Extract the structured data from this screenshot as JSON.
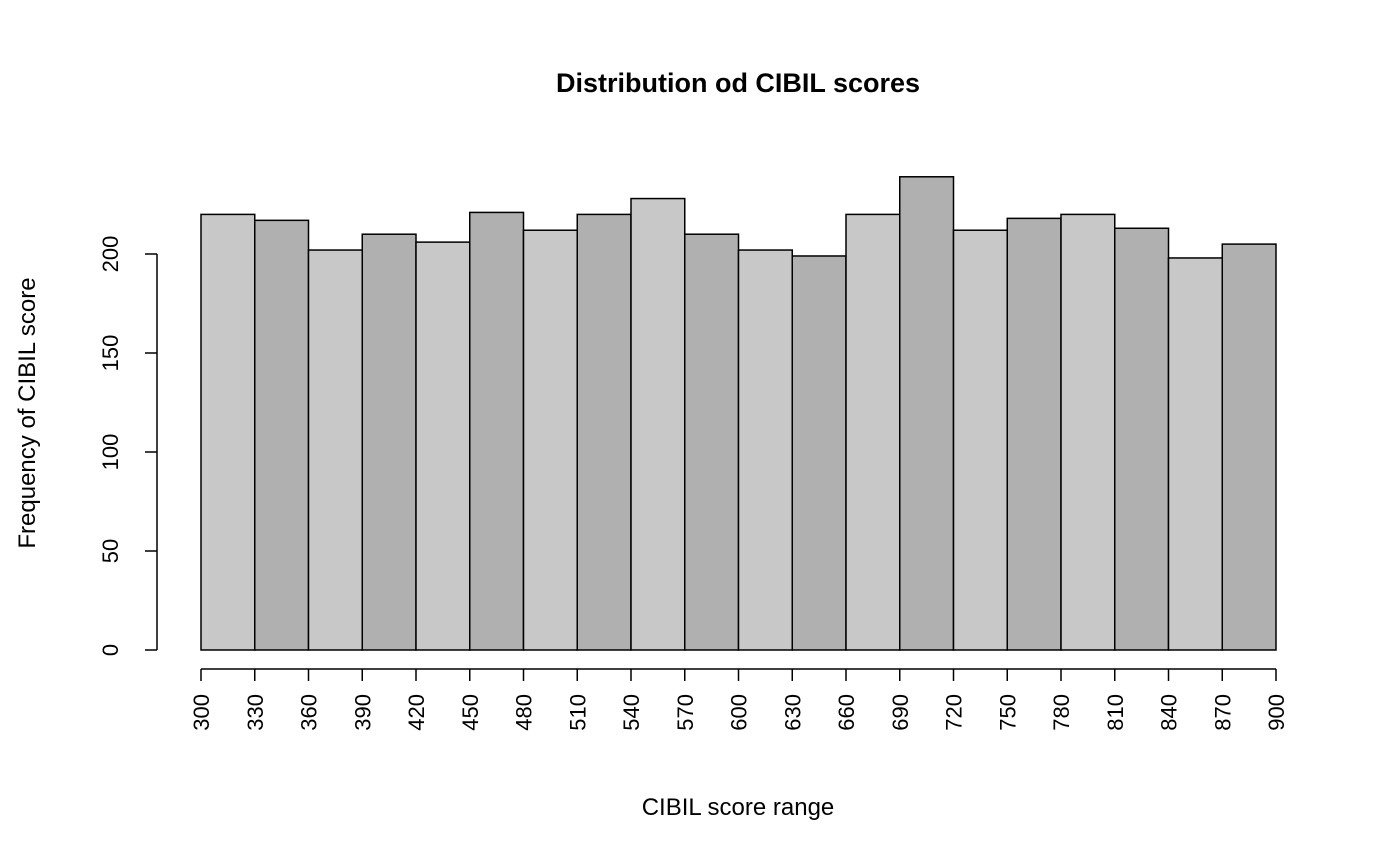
{
  "chart_data": {
    "type": "histogram",
    "title": "Distribution od CIBIL scores",
    "x_label": "CIBIL score range",
    "y_label": "Frequency of CIBIL score",
    "bins": [
      300,
      330,
      360,
      390,
      420,
      450,
      480,
      510,
      540,
      570,
      600,
      630,
      660,
      690,
      720,
      750,
      780,
      810,
      840,
      870,
      900
    ],
    "values": [
      220,
      217,
      202,
      210,
      206,
      221,
      212,
      220,
      228,
      210,
      202,
      199,
      220,
      239,
      212,
      218,
      220,
      213,
      198,
      205
    ],
    "colors": [
      "#c8c8c8",
      "#b0b0b0"
    ],
    "xlim": [
      300,
      900
    ],
    "ylim": [
      0,
      250
    ],
    "xticks": [
      300,
      330,
      360,
      390,
      420,
      450,
      480,
      510,
      540,
      570,
      600,
      630,
      660,
      690,
      720,
      750,
      780,
      810,
      840,
      870,
      900
    ],
    "yticks": [
      0,
      50,
      100,
      150,
      200
    ]
  }
}
